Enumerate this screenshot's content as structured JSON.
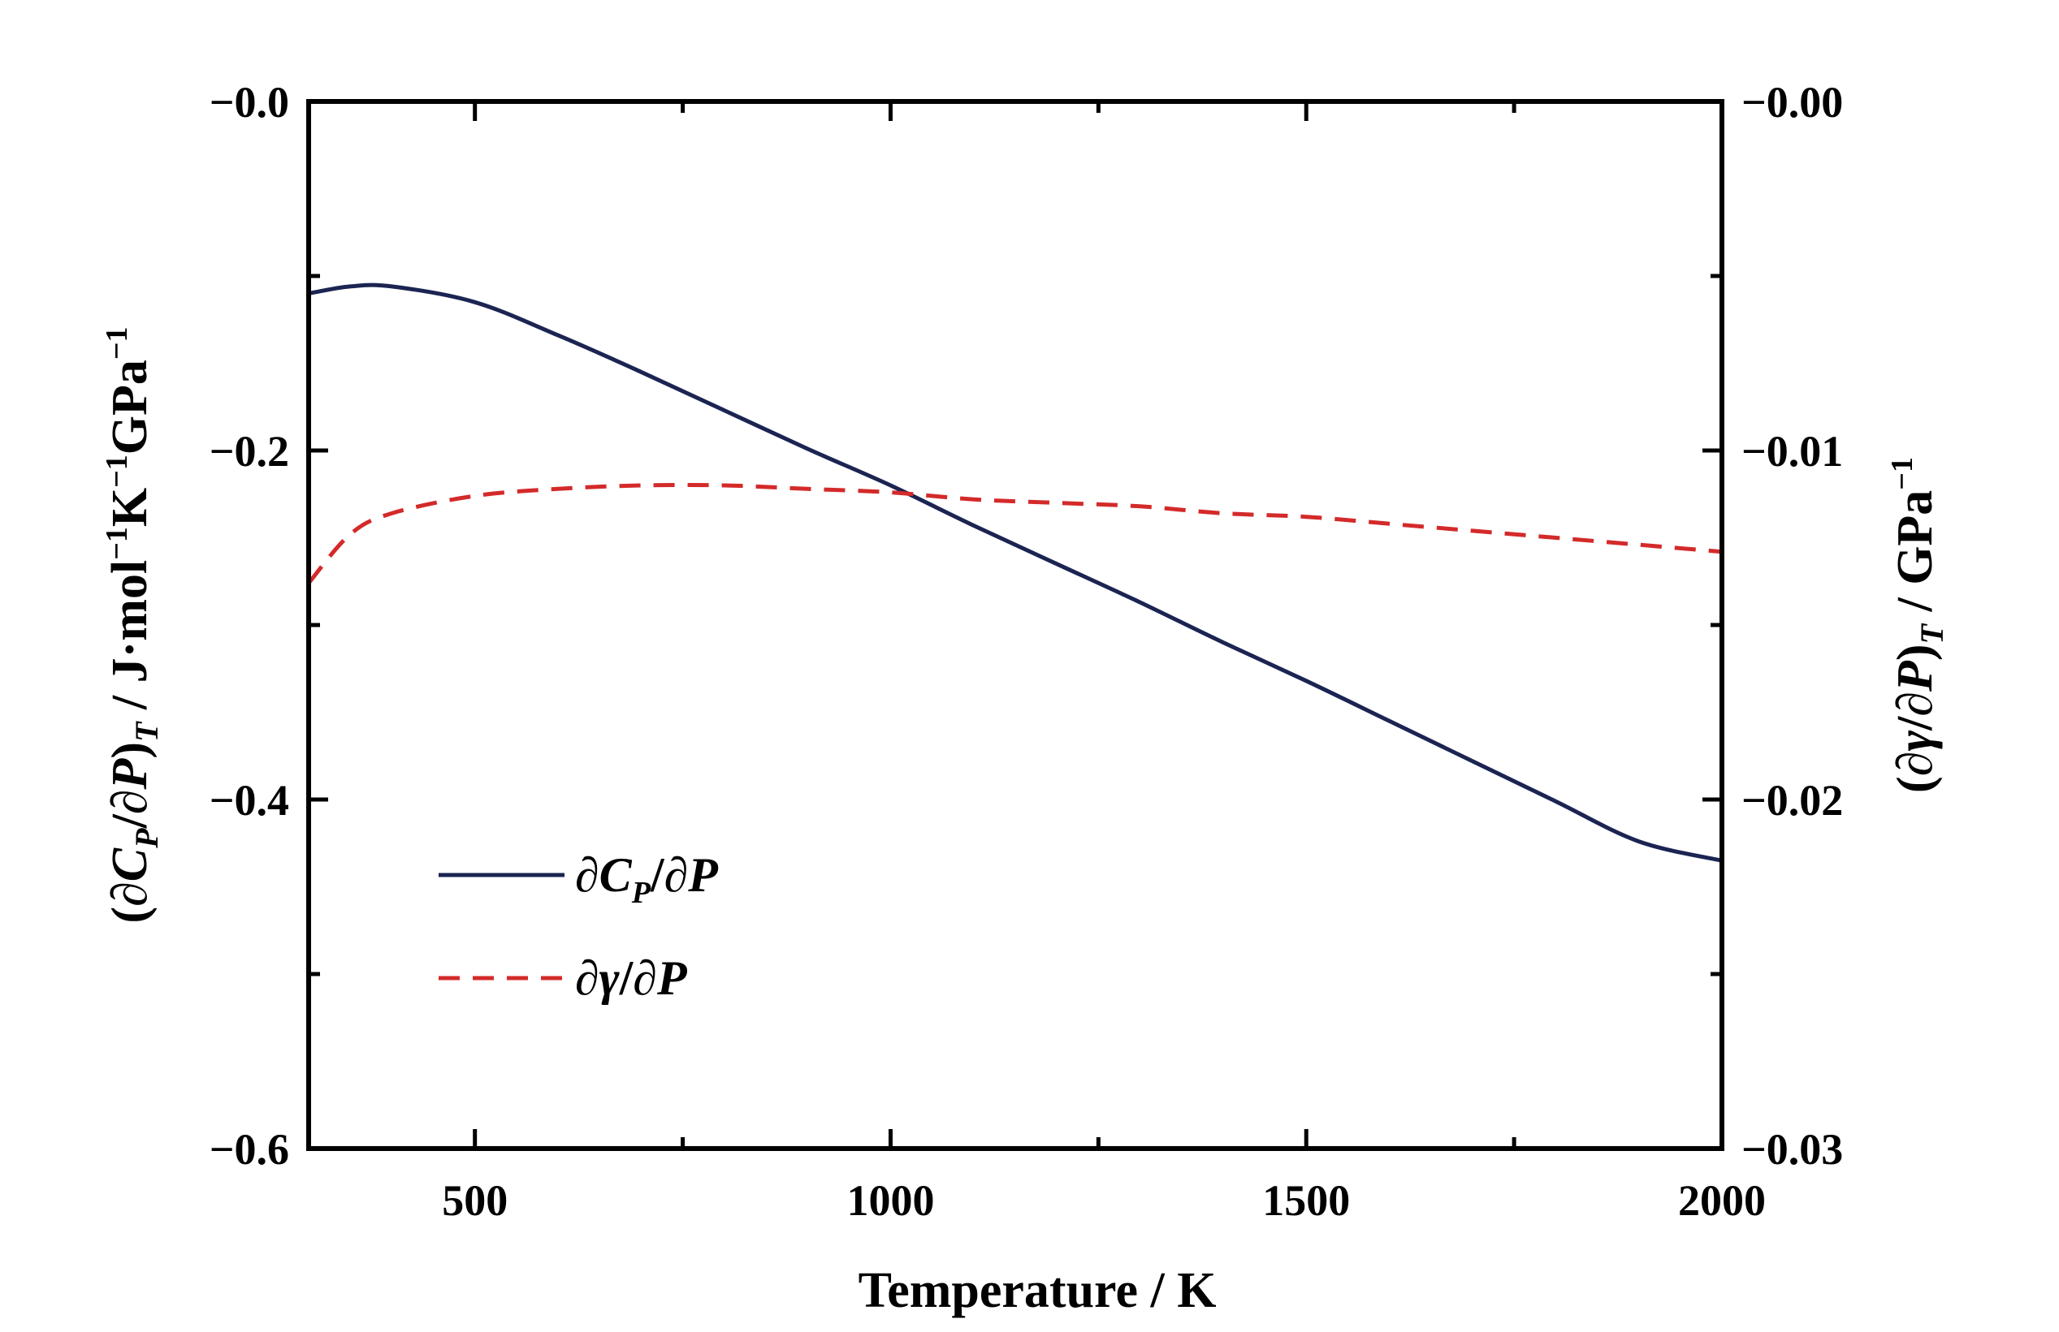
{
  "chart_data": {
    "type": "line",
    "x": [
      300,
      350,
      400,
      500,
      600,
      700,
      800,
      900,
      1000,
      1100,
      1200,
      1300,
      1400,
      1500,
      1600,
      1700,
      1800,
      1900,
      2000
    ],
    "series": [
      {
        "name": "∂CP/∂P",
        "axis": "left",
        "color": "#1b2452",
        "dash": "solid",
        "values": [
          -0.11,
          -0.106,
          -0.106,
          -0.115,
          -0.134,
          -0.155,
          -0.177,
          -0.199,
          -0.22,
          -0.243,
          -0.265,
          -0.287,
          -0.31,
          -0.332,
          -0.355,
          -0.378,
          -0.401,
          -0.424,
          -0.435
        ]
      },
      {
        "name": "∂γ/∂P",
        "axis": "right",
        "color": "#d42a2a",
        "dash": "dashed",
        "values": [
          -0.0138,
          -0.0124,
          -0.0118,
          -0.0113,
          -0.0111,
          -0.011,
          -0.011,
          -0.0111,
          -0.0112,
          -0.0114,
          -0.0115,
          -0.0116,
          -0.0118,
          -0.0119,
          -0.0121,
          -0.0123,
          -0.0125,
          -0.0127,
          -0.0129
        ]
      }
    ],
    "xlim": [
      300,
      2000
    ],
    "ylim": [
      -0.6,
      0.0
    ],
    "y2lim": [
      -0.03,
      0.0
    ],
    "x_ticks": [
      500,
      1000,
      1500,
      2000
    ],
    "x_tick_labels": [
      "500",
      "1000",
      "1500",
      "2000"
    ],
    "y_ticks": [
      0.0,
      -0.2,
      -0.4,
      -0.6
    ],
    "y_tick_labels": [
      "−0.0",
      "−0.2",
      "−0.4",
      "−0.6"
    ],
    "y2_ticks": [
      0.0,
      -0.01,
      -0.02,
      -0.03
    ],
    "y2_tick_labels": [
      "−0.00",
      "−0.01",
      "−0.02",
      "−0.03"
    ],
    "xlabel": "Temperature / K",
    "ylabel": {
      "p1": "(∂",
      "p2": "C",
      "p3": "P",
      "p4": "/∂",
      "p5": "P",
      "p6": ")",
      "p7": "T",
      "p8": " / J·mol",
      "p9": "−1",
      "p10": "K",
      "p11": "−1",
      "p12": "GPa",
      "p13": "−1"
    },
    "y2label": {
      "p1": "(∂",
      "p2": "γ",
      "p3": "/∂",
      "p4": "P",
      "p5": ")",
      "p6": "T",
      "p7": " / GPa",
      "p8": "−1"
    },
    "legend": {
      "placement": "lower-left",
      "entries": [
        {
          "l1": "∂",
          "l2": "C",
          "l3": "P",
          "l4": "/∂",
          "l5": "P"
        },
        {
          "l1": "∂",
          "l2": "γ",
          "l3": "/∂",
          "l4": "P"
        }
      ]
    }
  }
}
